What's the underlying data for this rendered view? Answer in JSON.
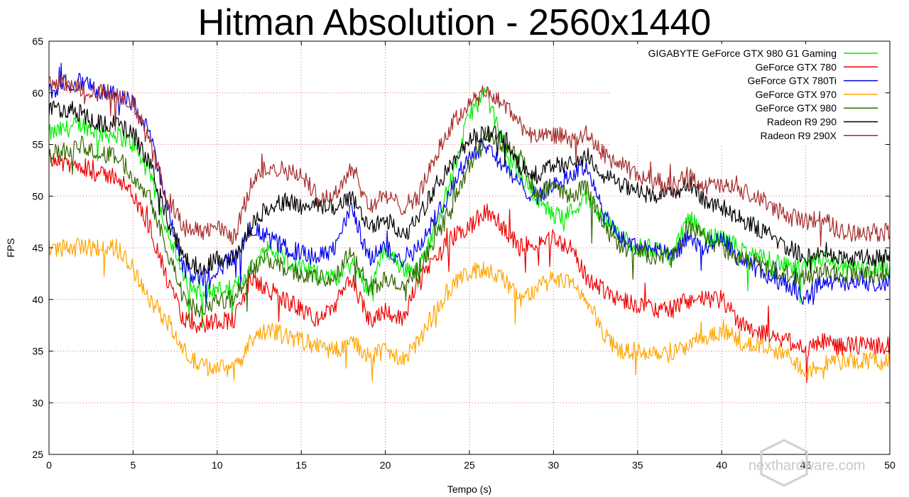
{
  "chart_data": {
    "type": "line",
    "title": "Hitman Absolution - 2560x1440",
    "xlabel": "Tempo (s)",
    "ylabel": "FPS",
    "xlim": [
      0,
      50
    ],
    "ylim": [
      25,
      65
    ],
    "xticks": [
      "0",
      "5",
      "10",
      "15",
      "20",
      "25",
      "30",
      "35",
      "40",
      "45",
      "50"
    ],
    "yticks": [
      "25",
      "30",
      "35",
      "40",
      "45",
      "50",
      "55",
      "60",
      "65"
    ],
    "grid": true,
    "legend_position": "top-right",
    "x": [
      0,
      1,
      2,
      3,
      4,
      5,
      6,
      7,
      8,
      9,
      10,
      11,
      12,
      13,
      14,
      15,
      16,
      17,
      18,
      19,
      20,
      21,
      22,
      23,
      24,
      25,
      26,
      27,
      28,
      29,
      30,
      31,
      32,
      33,
      34,
      35,
      36,
      37,
      38,
      39,
      40,
      41,
      42,
      43,
      44,
      45,
      46,
      47,
      48,
      49,
      50
    ],
    "series": [
      {
        "name": "GIGABYTE GeForce GTX 980 G1 Gaming",
        "color": "#00ee00",
        "values": [
          56,
          56.5,
          57,
          56,
          56,
          55,
          52,
          47,
          42,
          40.5,
          41,
          41,
          43,
          45,
          44,
          43,
          42.5,
          42,
          43.5,
          41,
          45,
          43,
          43,
          47,
          52,
          58,
          60,
          55,
          52,
          50,
          48,
          48.5,
          50,
          48,
          46,
          45,
          45,
          44,
          48,
          46,
          46,
          45,
          44,
          44,
          43,
          43,
          44,
          43,
          43,
          43,
          43
        ]
      },
      {
        "name": "GeForce GTX 780",
        "color": "#ee0000",
        "values": [
          54,
          53,
          53,
          52,
          52,
          50,
          47,
          42,
          38,
          37.5,
          38,
          38,
          42,
          41,
          40,
          39,
          38,
          39.5,
          42,
          38,
          39,
          38,
          42,
          44,
          46,
          47,
          48.5,
          47,
          45,
          45.5,
          46,
          45,
          42,
          41,
          40,
          39.5,
          39,
          39,
          40,
          40,
          40,
          38,
          37,
          36.5,
          36,
          35,
          36,
          35.5,
          35.5,
          35.5,
          35.5
        ]
      },
      {
        "name": "GeForce GTX 780Ti",
        "color": "#0000ee",
        "values": [
          60,
          61,
          61,
          60,
          60,
          59,
          56,
          49,
          43,
          42,
          43,
          44,
          47,
          46,
          45,
          44.5,
          44,
          45,
          49,
          44,
          45,
          44,
          45,
          48,
          51,
          54,
          55,
          53,
          51,
          50,
          51,
          52,
          53,
          48,
          46,
          45,
          45,
          44,
          46,
          45,
          46,
          44,
          43,
          42,
          41.5,
          40,
          42,
          41.5,
          41.5,
          41.5,
          41.5
        ]
      },
      {
        "name": "GeForce GTX 970",
        "color": "#ffa500",
        "values": [
          45,
          45,
          45,
          45,
          45,
          43,
          40,
          38,
          35,
          33.5,
          33.5,
          33,
          36,
          37,
          36.5,
          36,
          35.5,
          35,
          36,
          34.5,
          35,
          34,
          36,
          39,
          41.5,
          42.5,
          43,
          42,
          40,
          41,
          42,
          41.5,
          40,
          36.5,
          35,
          35,
          35,
          35,
          35.5,
          36,
          37,
          36,
          35.5,
          35,
          34.5,
          33,
          34,
          34,
          34,
          34,
          34
        ]
      },
      {
        "name": "GeForce GTX 980",
        "color": "#336600",
        "values": [
          54,
          54.5,
          55,
          54,
          54,
          52,
          50,
          45,
          40,
          39,
          40,
          40,
          43,
          44,
          43,
          42.5,
          42,
          42,
          45,
          41,
          42,
          41,
          43,
          46,
          49,
          53,
          56,
          55,
          54,
          50,
          51,
          50,
          51,
          47,
          45,
          45,
          44,
          44,
          47,
          46,
          45,
          44,
          43.5,
          43,
          42.5,
          42,
          43,
          42.5,
          42.5,
          42.5,
          42.5
        ]
      },
      {
        "name": "Radeon R9 290",
        "color": "#000000",
        "values": [
          58.5,
          58.5,
          58,
          57,
          57,
          56,
          53,
          48,
          44,
          43,
          44,
          44,
          47,
          49,
          49.5,
          49,
          49,
          49,
          50,
          47,
          48,
          46,
          48,
          51,
          53,
          55.5,
          56,
          56,
          53,
          52,
          53,
          53,
          54,
          52,
          51,
          50.5,
          50,
          50,
          51.5,
          49.5,
          49,
          48,
          47,
          46,
          45,
          44,
          45,
          44,
          44,
          44,
          44
        ]
      },
      {
        "name": "Radeon R9 290X",
        "color": "#a52a2a",
        "values": [
          61,
          61,
          60.5,
          60,
          60,
          59,
          55,
          50,
          47,
          46.5,
          47,
          46,
          51,
          53,
          52.5,
          52,
          50,
          50,
          53,
          49,
          50,
          49,
          50,
          54,
          57,
          59,
          60,
          59,
          57,
          55.5,
          56,
          55.5,
          56,
          54,
          53,
          52,
          51.5,
          51,
          52,
          51,
          51,
          50.5,
          50,
          49,
          48,
          47.5,
          48,
          46.5,
          46.5,
          46.5,
          46.5
        ]
      }
    ],
    "watermark": "nexthardware.com"
  }
}
